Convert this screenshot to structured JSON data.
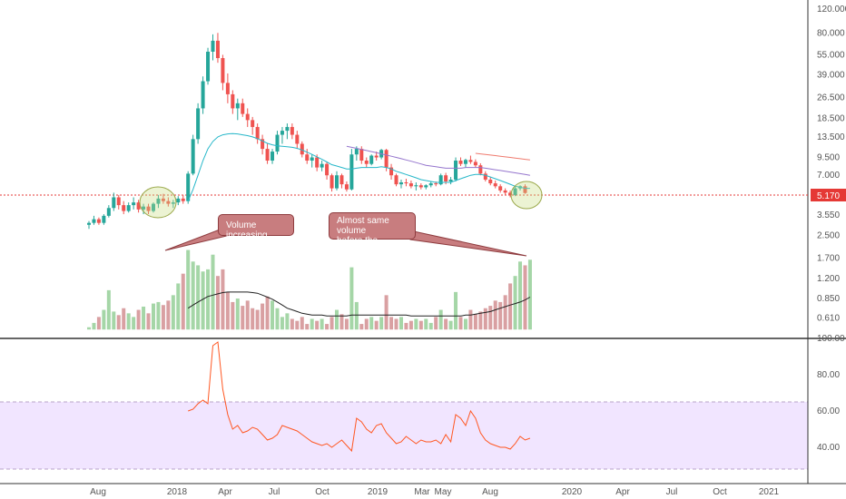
{
  "chart_data": {
    "type": "candlestick",
    "price_axis_labels": [
      "120.000",
      "80.000",
      "55.000",
      "39.000",
      "26.500",
      "18.500",
      "13.500",
      "9.500",
      "7.000",
      "5.170",
      "3.550",
      "2.500",
      "1.700",
      "1.200",
      "0.850",
      "0.610"
    ],
    "rsi_axis_labels": [
      "100.00",
      "80.00",
      "60.00",
      "40.00"
    ],
    "time_axis_labels": [
      "Aug",
      "2018",
      "Apr",
      "Jul",
      "Oct",
      "2019",
      "Mar",
      "May",
      "Aug",
      "2020",
      "Apr",
      "Jul",
      "Oct",
      "2021"
    ],
    "last_price": "5.170",
    "price_scale": "log",
    "price_range": [
      0.45,
      130
    ],
    "rsi_range": [
      20,
      100
    ],
    "rsi_levels": [
      30,
      70
    ],
    "colors": {
      "up": "#26a69a",
      "down": "#ef5350",
      "volume_up": "#a5d6a7",
      "volume_down": "#d9a0a2",
      "ma": "#26b7c9",
      "ma2": "#9575cd",
      "ma3": "#ef7b6f",
      "rsi": "#ff5722",
      "rsi_band": "#f1e5ff",
      "last_price": "#e53935"
    },
    "candles": [
      [
        3.0,
        3.2,
        2.8,
        3.1
      ],
      [
        3.1,
        3.5,
        3.0,
        3.3
      ],
      [
        3.3,
        3.4,
        3.0,
        3.1
      ],
      [
        3.1,
        3.6,
        3.0,
        3.5
      ],
      [
        3.5,
        4.2,
        3.4,
        4.0
      ],
      [
        4.0,
        5.2,
        3.8,
        4.8
      ],
      [
        4.8,
        5.0,
        3.9,
        4.2
      ],
      [
        4.2,
        4.5,
        3.6,
        3.8
      ],
      [
        3.8,
        4.4,
        3.7,
        4.2
      ],
      [
        4.2,
        4.8,
        3.9,
        4.4
      ],
      [
        4.4,
        4.6,
        3.7,
        3.9
      ],
      [
        3.9,
        4.3,
        3.6,
        4.1
      ],
      [
        4.1,
        4.3,
        3.6,
        3.8
      ],
      [
        3.8,
        4.4,
        3.7,
        4.3
      ],
      [
        4.3,
        5.0,
        4.0,
        4.7
      ],
      [
        4.7,
        5.1,
        4.3,
        4.5
      ],
      [
        4.5,
        4.8,
        4.1,
        4.3
      ],
      [
        4.3,
        4.6,
        4.0,
        4.4
      ],
      [
        4.4,
        4.9,
        4.2,
        4.7
      ],
      [
        4.7,
        5.0,
        4.3,
        4.5
      ],
      [
        4.5,
        7.5,
        4.3,
        7.2
      ],
      [
        7.2,
        14,
        7,
        13
      ],
      [
        13,
        24,
        12,
        22
      ],
      [
        22,
        38,
        20,
        35
      ],
      [
        35,
        62,
        33,
        58
      ],
      [
        58,
        78,
        50,
        70
      ],
      [
        70,
        80,
        48,
        52
      ],
      [
        52,
        55,
        30,
        34
      ],
      [
        34,
        40,
        24,
        28
      ],
      [
        28,
        30,
        20,
        22
      ],
      [
        22,
        26,
        18,
        24
      ],
      [
        24,
        26,
        19,
        20
      ],
      [
        20,
        22,
        16,
        18
      ],
      [
        18,
        19,
        14,
        16
      ],
      [
        16,
        17,
        12,
        13
      ],
      [
        13,
        14,
        10,
        11
      ],
      [
        11,
        12,
        8.5,
        9
      ],
      [
        9,
        11,
        8.5,
        10.5
      ],
      [
        10.5,
        15,
        10,
        14
      ],
      [
        14,
        16,
        12,
        15
      ],
      [
        15,
        17,
        13,
        16
      ],
      [
        16,
        17,
        13,
        14
      ],
      [
        14,
        15,
        11,
        12
      ],
      [
        12,
        12.5,
        9.5,
        10
      ],
      [
        10,
        11,
        8.5,
        9
      ],
      [
        9,
        10,
        8,
        9.5
      ],
      [
        9.5,
        10,
        7.5,
        8
      ],
      [
        8,
        9,
        7.5,
        8.5
      ],
      [
        8.5,
        8.8,
        6.5,
        7
      ],
      [
        7,
        7.2,
        5.3,
        5.6
      ],
      [
        5.6,
        7.5,
        5.4,
        7.0
      ],
      [
        7.0,
        7.2,
        5.6,
        6.0
      ],
      [
        6.0,
        6.3,
        5.3,
        5.5
      ],
      [
        5.5,
        11,
        5.4,
        10
      ],
      [
        10,
        11.5,
        9,
        11
      ],
      [
        11,
        11.5,
        8.5,
        9
      ],
      [
        9,
        9.5,
        8,
        8.5
      ],
      [
        8.5,
        10,
        8.3,
        9.8
      ],
      [
        9.8,
        10.5,
        9,
        9.5
      ],
      [
        9.5,
        11,
        9.2,
        10.8
      ],
      [
        10.8,
        11,
        7.5,
        8
      ],
      [
        8,
        8.5,
        6.5,
        7
      ],
      [
        7,
        7.2,
        5.8,
        6.0
      ],
      [
        6.0,
        6.5,
        5.6,
        6.2
      ],
      [
        6.2,
        6.6,
        5.8,
        6.1
      ],
      [
        6.1,
        6.4,
        5.6,
        5.8
      ],
      [
        5.8,
        6.2,
        5.4,
        5.9
      ],
      [
        5.9,
        6.1,
        5.5,
        5.7
      ],
      [
        5.7,
        6.0,
        5.5,
        5.9
      ],
      [
        5.9,
        6.3,
        5.7,
        6.1
      ],
      [
        6.1,
        6.3,
        5.8,
        6.0
      ],
      [
        6.0,
        7.2,
        5.9,
        7.0
      ],
      [
        7.0,
        7.3,
        6.0,
        6.3
      ],
      [
        6.3,
        6.8,
        6.0,
        6.5
      ],
      [
        6.5,
        9.5,
        6.3,
        9
      ],
      [
        9,
        9.5,
        8.2,
        8.5
      ],
      [
        8.5,
        9.3,
        8,
        9.1
      ],
      [
        9.1,
        9.8,
        8.5,
        8.8
      ],
      [
        8.8,
        9.2,
        8.0,
        8.3
      ],
      [
        8.3,
        8.6,
        7,
        7.2
      ],
      [
        7.2,
        7.5,
        6.3,
        6.5
      ],
      [
        6.5,
        6.8,
        5.9,
        6.1
      ],
      [
        6.1,
        6.4,
        5.6,
        5.8
      ],
      [
        5.8,
        6.0,
        5.2,
        5.4
      ],
      [
        5.4,
        5.6,
        5.0,
        5.2
      ],
      [
        5.2,
        5.4,
        4.8,
        5.0
      ],
      [
        5.0,
        5.8,
        4.9,
        5.6
      ],
      [
        5.6,
        5.9,
        5.4,
        5.8
      ],
      [
        5.8,
        6.0,
        5.1,
        5.17
      ]
    ],
    "volume": [
      0.52,
      0.56,
      0.62,
      0.7,
      0.98,
      0.68,
      0.64,
      0.72,
      0.66,
      0.62,
      0.7,
      0.74,
      0.66,
      0.78,
      0.8,
      0.76,
      0.82,
      0.9,
      1.1,
      1.3,
      1.95,
      1.6,
      1.5,
      1.35,
      1.4,
      1.8,
      1.25,
      1.4,
      0.95,
      0.8,
      0.85,
      0.75,
      0.82,
      0.72,
      0.7,
      0.78,
      0.88,
      0.82,
      0.72,
      0.62,
      0.66,
      0.6,
      0.58,
      0.62,
      0.55,
      0.6,
      0.58,
      0.6,
      0.55,
      0.62,
      0.7,
      0.65,
      0.6,
      1.45,
      0.8,
      0.55,
      0.6,
      0.62,
      0.58,
      0.62,
      0.9,
      0.62,
      0.6,
      0.62,
      0.56,
      0.58,
      0.6,
      0.58,
      0.6,
      0.56,
      0.62,
      0.7,
      0.6,
      0.58,
      0.95,
      0.62,
      0.6,
      0.7,
      0.65,
      0.68,
      0.72,
      0.75,
      0.82,
      0.8,
      0.9,
      1.1,
      1.25,
      1.6,
      1.5,
      1.65
    ],
    "ma": [
      null,
      null,
      null,
      null,
      null,
      null,
      null,
      null,
      null,
      null,
      null,
      null,
      null,
      null,
      null,
      null,
      null,
      null,
      null,
      null,
      4.5,
      5.5,
      7,
      9,
      11,
      12.5,
      13.5,
      14,
      14.2,
      14.3,
      14.2,
      14,
      13.8,
      13.5,
      13.1,
      12.6,
      12.1,
      11.8,
      11.6,
      11.5,
      11.4,
      11.3,
      11.1,
      10.8,
      10.4,
      10.0,
      9.6,
      9.2,
      8.8,
      8.4,
      8.2,
      8.0,
      7.8,
      7.8,
      7.9,
      8.0,
      8.0,
      8.0,
      8.0,
      8.1,
      8.0,
      7.8,
      7.5,
      7.3,
      7.1,
      6.9,
      6.7,
      6.5,
      6.4,
      6.3,
      6.2,
      6.2,
      6.2,
      6.2,
      6.4,
      6.6,
      6.8,
      7.0,
      7.1,
      7.1,
      7.0,
      6.8,
      6.6,
      6.4,
      6.2,
      6.0,
      5.8,
      5.7,
      5.6,
      5.6
    ],
    "ma2": [
      null,
      null,
      null,
      null,
      null,
      null,
      null,
      null,
      null,
      null,
      null,
      null,
      null,
      null,
      null,
      null,
      null,
      null,
      null,
      null,
      null,
      null,
      null,
      null,
      null,
      null,
      null,
      null,
      null,
      null,
      null,
      null,
      null,
      null,
      null,
      null,
      null,
      null,
      null,
      null,
      null,
      null,
      null,
      null,
      null,
      null,
      null,
      null,
      null,
      null,
      null,
      null,
      11.5,
      11.3,
      11.1,
      10.9,
      10.7,
      10.5,
      10.3,
      10.1,
      9.9,
      9.7,
      9.5,
      9.3,
      9.1,
      8.9,
      8.7,
      8.5,
      8.3,
      8.2,
      8.1,
      8.0,
      7.9,
      7.9,
      7.9,
      7.9,
      8.0,
      8.0,
      8.0,
      8.0,
      7.9,
      7.8,
      7.7,
      7.6,
      7.5,
      7.4,
      7.3,
      7.2,
      7.1,
      7.0
    ],
    "ma3": [
      null,
      null,
      null,
      null,
      null,
      null,
      null,
      null,
      null,
      null,
      null,
      null,
      null,
      null,
      null,
      null,
      null,
      null,
      null,
      null,
      null,
      null,
      null,
      null,
      null,
      null,
      null,
      null,
      null,
      null,
      null,
      null,
      null,
      null,
      null,
      null,
      null,
      null,
      null,
      null,
      null,
      null,
      null,
      null,
      null,
      null,
      null,
      null,
      null,
      null,
      null,
      null,
      null,
      null,
      null,
      null,
      null,
      null,
      null,
      null,
      null,
      null,
      null,
      null,
      null,
      null,
      null,
      null,
      null,
      null,
      null,
      null,
      null,
      null,
      null,
      null,
      null,
      null,
      10.2,
      10.1,
      10.0,
      9.9,
      9.8,
      9.7,
      9.6,
      9.5,
      9.4,
      9.3,
      9.2,
      9.1
    ],
    "volume_ma": [
      null,
      null,
      null,
      null,
      null,
      null,
      null,
      null,
      null,
      null,
      null,
      null,
      null,
      null,
      null,
      null,
      null,
      null,
      null,
      null,
      0.72,
      0.76,
      0.8,
      0.84,
      0.88,
      0.9,
      0.92,
      0.94,
      0.95,
      0.95,
      0.95,
      0.95,
      0.95,
      0.94,
      0.93,
      0.9,
      0.87,
      0.84,
      0.8,
      0.76,
      0.72,
      0.7,
      0.68,
      0.66,
      0.65,
      0.64,
      0.64,
      0.64,
      0.63,
      0.63,
      0.63,
      0.63,
      0.63,
      0.64,
      0.64,
      0.64,
      0.64,
      0.64,
      0.64,
      0.64,
      0.64,
      0.64,
      0.64,
      0.64,
      0.64,
      0.63,
      0.63,
      0.63,
      0.63,
      0.63,
      0.63,
      0.63,
      0.63,
      0.63,
      0.63,
      0.63,
      0.64,
      0.64,
      0.65,
      0.66,
      0.67,
      0.68,
      0.7,
      0.72,
      0.74,
      0.76,
      0.78,
      0.8,
      0.83,
      0.87
    ],
    "rsi": [
      null,
      null,
      null,
      null,
      null,
      null,
      null,
      null,
      null,
      null,
      null,
      null,
      null,
      null,
      null,
      null,
      null,
      null,
      null,
      null,
      60,
      61,
      64,
      66,
      64,
      96,
      98,
      72,
      58,
      50,
      52,
      48,
      49,
      51,
      50,
      47,
      44,
      45,
      47,
      52,
      51,
      50,
      49,
      47,
      45,
      43,
      42,
      41,
      42,
      40,
      42,
      44,
      41,
      38,
      56,
      54,
      50,
      48,
      52,
      53,
      48,
      45,
      42,
      43,
      46,
      44,
      42,
      44,
      43,
      43,
      44,
      42,
      47,
      43,
      58,
      56,
      52,
      60,
      56,
      48,
      44,
      42,
      41,
      40,
      40,
      39,
      42,
      46,
      44,
      45
    ]
  },
  "annotations": {
    "volume_note": "Volume increasing",
    "breakout_note_1": "Almost same volume",
    "breakout_note_2": "before the breakout"
  }
}
